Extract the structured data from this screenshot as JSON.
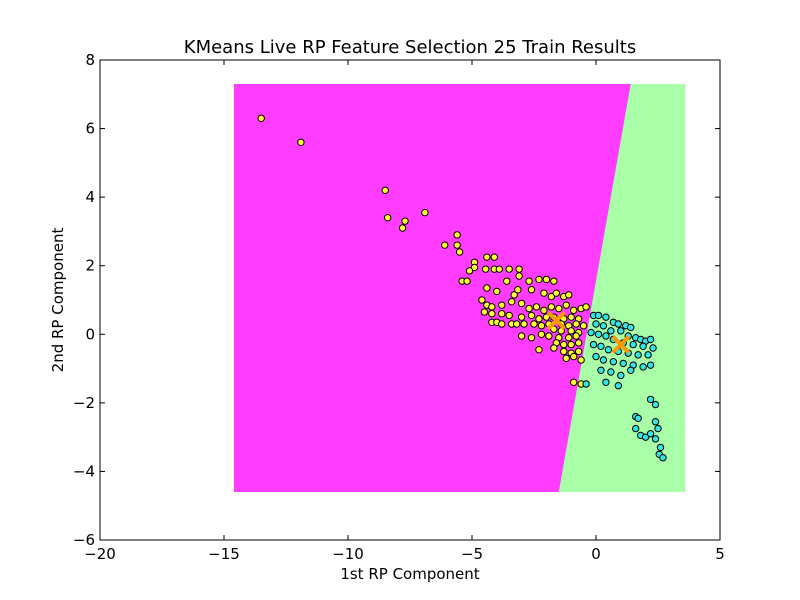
{
  "chart_data": {
    "type": "scatter",
    "title": "KMeans Live RP Feature Selection 25 Train Results",
    "xlabel": "1st RP Component",
    "ylabel": "2nd RP Component",
    "xlim": [
      -20,
      5
    ],
    "ylim": [
      -6,
      8
    ],
    "xticks": [
      -20,
      -15,
      -10,
      -5,
      0,
      5
    ],
    "xtick_labels": [
      "−20",
      "−15",
      "−10",
      "−5",
      "0",
      "5"
    ],
    "yticks": [
      -6,
      -4,
      -2,
      0,
      2,
      4,
      6,
      8
    ],
    "ytick_labels": [
      "−6",
      "−4",
      "−2",
      "0",
      "2",
      "4",
      "6",
      "8"
    ],
    "grid": false,
    "legend": "none",
    "decision_regions": {
      "x_range": [
        -14.6,
        3.6
      ],
      "y_range": [
        -4.6,
        7.3
      ],
      "regions": [
        {
          "cluster": 0,
          "color": "#ff3cff",
          "boundary": [
            [
              1.4,
              7.3
            ],
            [
              -1.5,
              -4.6
            ]
          ]
        },
        {
          "cluster": 1,
          "color": "#a8ffa8"
        }
      ]
    },
    "series": [
      {
        "cluster": 0,
        "color": "#ffff33",
        "points": [
          [
            -13.5,
            6.3
          ],
          [
            -11.9,
            5.6
          ],
          [
            -8.5,
            4.2
          ],
          [
            -8.4,
            3.4
          ],
          [
            -7.7,
            3.3
          ],
          [
            -7.8,
            3.1
          ],
          [
            -6.9,
            3.55
          ],
          [
            -5.6,
            2.9
          ],
          [
            -6.1,
            2.6
          ],
          [
            -5.6,
            2.6
          ],
          [
            -5.5,
            2.4
          ],
          [
            -4.9,
            2.1
          ],
          [
            -4.9,
            1.95
          ],
          [
            -4.4,
            2.25
          ],
          [
            -4.1,
            2.25
          ],
          [
            -5.1,
            1.85
          ],
          [
            -4.45,
            1.9
          ],
          [
            -4.1,
            1.9
          ],
          [
            -3.9,
            1.9
          ],
          [
            -3.5,
            1.9
          ],
          [
            -3.1,
            1.9
          ],
          [
            -3.1,
            1.7
          ],
          [
            -5.4,
            1.55
          ],
          [
            -5.2,
            1.55
          ],
          [
            -4.4,
            1.35
          ],
          [
            -4.0,
            1.25
          ],
          [
            -3.6,
            1.55
          ],
          [
            -3.3,
            1.15
          ],
          [
            -3.15,
            1.3
          ],
          [
            -2.7,
            1.55
          ],
          [
            -2.6,
            1.3
          ],
          [
            -2.3,
            1.6
          ],
          [
            -2.0,
            1.6
          ],
          [
            -1.7,
            1.55
          ],
          [
            -2.1,
            1.2
          ],
          [
            -1.8,
            1.1
          ],
          [
            -1.6,
            1.2
          ],
          [
            -1.3,
            1.1
          ],
          [
            -1.1,
            1.15
          ],
          [
            -4.6,
            1.0
          ],
          [
            -4.4,
            0.85
          ],
          [
            -4.2,
            0.8
          ],
          [
            -3.8,
            0.85
          ],
          [
            -3.4,
            0.95
          ],
          [
            -3.0,
            0.9
          ],
          [
            -2.7,
            0.75
          ],
          [
            -2.4,
            0.8
          ],
          [
            -2.1,
            0.7
          ],
          [
            -1.8,
            0.8
          ],
          [
            -1.5,
            0.75
          ],
          [
            -1.2,
            0.85
          ],
          [
            -0.9,
            0.7
          ],
          [
            -0.6,
            0.75
          ],
          [
            -0.4,
            0.8
          ],
          [
            -4.5,
            0.65
          ],
          [
            -4.2,
            0.6
          ],
          [
            -3.8,
            0.6
          ],
          [
            -3.5,
            0.55
          ],
          [
            -3.0,
            0.5
          ],
          [
            -2.6,
            0.55
          ],
          [
            -2.3,
            0.45
          ],
          [
            -2.0,
            0.5
          ],
          [
            -1.7,
            0.5
          ],
          [
            -1.3,
            0.45
          ],
          [
            -1.0,
            0.5
          ],
          [
            -0.7,
            0.45
          ],
          [
            -4.2,
            0.35
          ],
          [
            -4.0,
            0.35
          ],
          [
            -3.8,
            0.3
          ],
          [
            -3.4,
            0.3
          ],
          [
            -3.2,
            0.3
          ],
          [
            -2.9,
            0.3
          ],
          [
            -2.5,
            0.3
          ],
          [
            -2.2,
            0.25
          ],
          [
            -1.9,
            0.3
          ],
          [
            -1.4,
            0.3
          ],
          [
            -1.1,
            0.25
          ],
          [
            -0.8,
            0.3
          ],
          [
            -0.5,
            0.25
          ],
          [
            -1.7,
            0.15
          ],
          [
            -1.4,
            0.1
          ],
          [
            -1.0,
            0.1
          ],
          [
            -0.7,
            0.05
          ],
          [
            -3.0,
            -0.05
          ],
          [
            -2.6,
            -0.1
          ],
          [
            -2.2,
            0.0
          ],
          [
            -1.9,
            -0.05
          ],
          [
            -1.5,
            -0.1
          ],
          [
            -1.1,
            -0.1
          ],
          [
            -0.8,
            -0.05
          ],
          [
            -1.6,
            -0.25
          ],
          [
            -1.3,
            -0.3
          ],
          [
            -1.0,
            -0.3
          ],
          [
            -0.7,
            -0.25
          ],
          [
            -2.3,
            -0.45
          ],
          [
            -1.7,
            -0.4
          ],
          [
            -1.3,
            -0.5
          ],
          [
            -1.0,
            -0.55
          ],
          [
            -0.7,
            -0.5
          ],
          [
            -1.2,
            -0.7
          ],
          [
            -0.9,
            -0.65
          ],
          [
            -0.6,
            -0.75
          ],
          [
            -0.9,
            -1.4
          ],
          [
            -0.6,
            -1.45
          ]
        ]
      },
      {
        "cluster": 1,
        "color": "#33e5e5",
        "points": [
          [
            -0.1,
            0.55
          ],
          [
            0.1,
            0.55
          ],
          [
            0.4,
            0.5
          ],
          [
            0.7,
            0.35
          ],
          [
            0.9,
            0.3
          ],
          [
            1.2,
            0.25
          ],
          [
            1.4,
            0.2
          ],
          [
            0.0,
            0.3
          ],
          [
            0.3,
            0.25
          ],
          [
            0.6,
            0.1
          ],
          [
            1.0,
            0.1
          ],
          [
            1.3,
            -0.05
          ],
          [
            1.6,
            -0.1
          ],
          [
            1.8,
            -0.15
          ],
          [
            2.0,
            -0.2
          ],
          [
            2.2,
            -0.15
          ],
          [
            -0.2,
            0.05
          ],
          [
            0.1,
            0.0
          ],
          [
            0.4,
            -0.05
          ],
          [
            0.7,
            -0.15
          ],
          [
            1.1,
            -0.25
          ],
          [
            1.5,
            -0.3
          ],
          [
            1.9,
            -0.35
          ],
          [
            2.3,
            -0.4
          ],
          [
            -0.1,
            -0.3
          ],
          [
            0.2,
            -0.35
          ],
          [
            0.5,
            -0.45
          ],
          [
            0.9,
            -0.5
          ],
          [
            1.3,
            -0.55
          ],
          [
            1.7,
            -0.6
          ],
          [
            2.1,
            -0.6
          ],
          [
            0.0,
            -0.65
          ],
          [
            0.3,
            -0.75
          ],
          [
            0.7,
            -0.8
          ],
          [
            1.1,
            -0.85
          ],
          [
            1.5,
            -0.9
          ],
          [
            1.9,
            -0.95
          ],
          [
            2.2,
            -0.9
          ],
          [
            0.2,
            -1.05
          ],
          [
            0.6,
            -1.1
          ],
          [
            1.0,
            -1.2
          ],
          [
            1.4,
            -1.05
          ],
          [
            0.9,
            -1.5
          ],
          [
            0.4,
            -1.4
          ],
          [
            -0.4,
            -1.45
          ],
          [
            2.2,
            -1.9
          ],
          [
            2.4,
            -2.05
          ],
          [
            1.6,
            -2.4
          ],
          [
            1.7,
            -2.45
          ],
          [
            1.6,
            -2.75
          ],
          [
            1.8,
            -2.95
          ],
          [
            2.0,
            -3.0
          ],
          [
            2.2,
            -2.9
          ],
          [
            2.4,
            -2.55
          ],
          [
            2.5,
            -2.75
          ],
          [
            2.4,
            -3.05
          ],
          [
            2.6,
            -3.3
          ],
          [
            2.55,
            -3.5
          ],
          [
            2.7,
            -3.6
          ]
        ]
      }
    ],
    "centroids": {
      "marker": "x",
      "color": "#ff9900",
      "points": [
        [
          -1.6,
          0.4
        ],
        [
          1.0,
          -0.3
        ]
      ]
    }
  }
}
